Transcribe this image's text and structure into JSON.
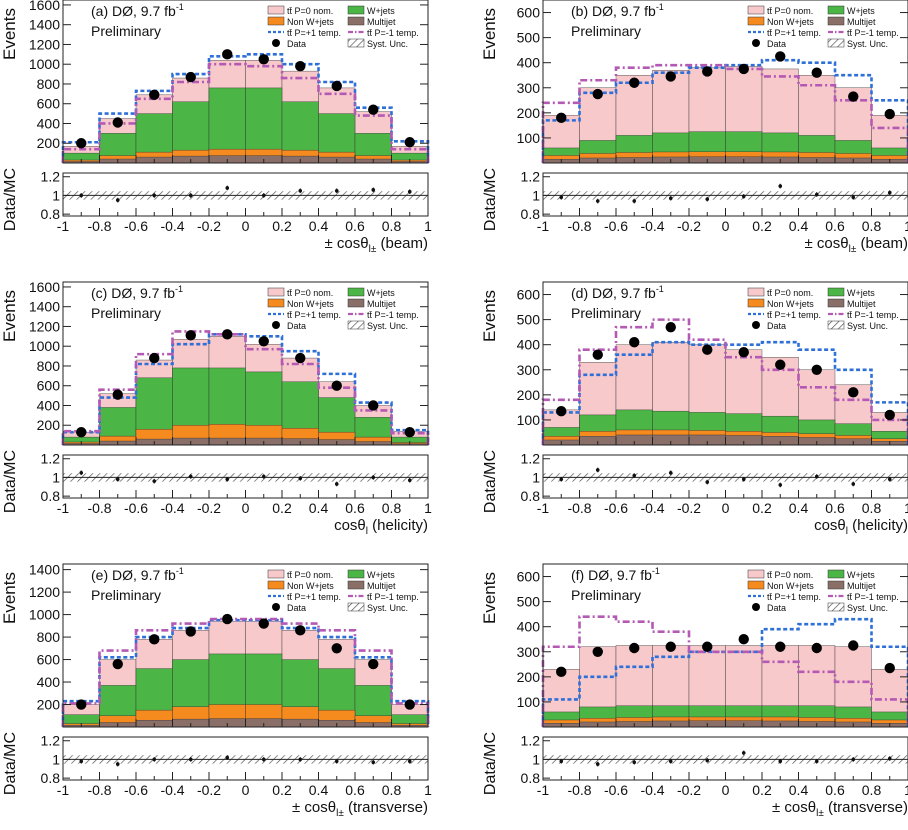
{
  "colors": {
    "ttbar_nom": "#f7c9cb",
    "wjets": "#4bb545",
    "nonw": "#f58a1f",
    "multijet": "#8a6f69",
    "p_plus": "#2f6fd8",
    "p_minus": "#b45ab4",
    "data": "#000000",
    "syst": "#555555"
  },
  "legend": {
    "ttbar_nom": "tt̄ P=0 nom.",
    "wjets": "W+jets",
    "nonw": "Non W+jets",
    "multijet": "Multijet",
    "p_plus": "tt̄ P=+1 temp.",
    "p_minus": "tt̄ P=-1 temp.",
    "data": "Data",
    "syst": "Syst. Unc."
  },
  "common": {
    "experiment": "DØ, 9.7 fb",
    "lumi_sup": "-1",
    "preliminary": "Preliminary",
    "ylabel_main": "Events",
    "ylabel_ratio": "Data/MC",
    "ratio_ticks": [
      "0.8",
      "1",
      "1.2"
    ]
  },
  "chart_data": [
    {
      "type": "bar",
      "tag": "(a)",
      "xlabel": "± cosθ",
      "xlabel_sub": "l±",
      "xlabel_tail": "(beam)",
      "xlim": [
        -1,
        1
      ],
      "ylim": [
        0,
        1650
      ],
      "yticks": [
        200,
        400,
        600,
        800,
        1000,
        1200,
        1400,
        1600
      ],
      "bin_centers": [
        -0.9,
        -0.7,
        -0.5,
        -0.3,
        -0.1,
        0.1,
        0.3,
        0.5,
        0.7,
        0.9
      ],
      "multijet": [
        15,
        40,
        60,
        70,
        75,
        75,
        70,
        60,
        40,
        15
      ],
      "nonw": [
        30,
        75,
        110,
        130,
        140,
        140,
        130,
        110,
        75,
        30
      ],
      "wjets": [
        100,
        300,
        500,
        620,
        760,
        760,
        620,
        500,
        300,
        100
      ],
      "total_p0": [
        170,
        450,
        690,
        860,
        1040,
        1040,
        930,
        760,
        520,
        170
      ],
      "p_plus": [
        210,
        500,
        730,
        900,
        1080,
        1100,
        1000,
        820,
        560,
        220
      ],
      "p_minus": [
        140,
        400,
        650,
        820,
        1000,
        980,
        860,
        700,
        480,
        140
      ],
      "data": [
        200,
        410,
        690,
        870,
        1100,
        1050,
        980,
        780,
        540,
        210
      ],
      "ratio": [
        1.0,
        0.95,
        1.0,
        1.0,
        1.08,
        1.0,
        1.05,
        1.05,
        1.06,
        1.04
      ]
    },
    {
      "type": "bar",
      "tag": "(b)",
      "xlabel": "± cosθ",
      "xlabel_sub": "l±",
      "xlabel_tail": "(beam)",
      "xlim": [
        -1,
        1
      ],
      "ylim": [
        0,
        650
      ],
      "yticks": [
        100,
        200,
        300,
        400,
        500,
        600
      ],
      "bin_centers": [
        -0.9,
        -0.7,
        -0.5,
        -0.3,
        -0.1,
        0.1,
        0.3,
        0.5,
        0.7,
        0.9
      ],
      "multijet": [
        15,
        20,
        22,
        24,
        25,
        25,
        24,
        22,
        20,
        15
      ],
      "nonw": [
        30,
        38,
        42,
        44,
        45,
        45,
        44,
        42,
        38,
        30
      ],
      "wjets": [
        60,
        90,
        110,
        120,
        125,
        125,
        120,
        110,
        90,
        60
      ],
      "total_p0": [
        190,
        300,
        350,
        370,
        380,
        385,
        375,
        350,
        300,
        190
      ],
      "p_plus": [
        170,
        280,
        320,
        360,
        380,
        390,
        410,
        400,
        350,
        250
      ],
      "p_minus": [
        240,
        330,
        380,
        390,
        390,
        375,
        345,
        310,
        250,
        140
      ],
      "data": [
        180,
        275,
        320,
        345,
        365,
        375,
        425,
        360,
        265,
        195
      ],
      "ratio": [
        0.98,
        0.94,
        0.94,
        0.97,
        0.96,
        0.99,
        1.1,
        1.01,
        0.98,
        1.03
      ]
    },
    {
      "type": "bar",
      "tag": "(c)",
      "xlabel": "cosθ",
      "xlabel_sub": "l",
      "xlabel_tail": "(helicity)",
      "xlim": [
        -1,
        1
      ],
      "ylim": [
        0,
        1650
      ],
      "yticks": [
        200,
        400,
        600,
        800,
        1000,
        1200,
        1400,
        1600
      ],
      "bin_centers": [
        -0.9,
        -0.7,
        -0.5,
        -0.3,
        -0.1,
        0.1,
        0.3,
        0.5,
        0.7,
        0.9
      ],
      "multijet": [
        15,
        40,
        60,
        70,
        70,
        70,
        65,
        55,
        35,
        12
      ],
      "nonw": [
        30,
        90,
        160,
        200,
        210,
        200,
        170,
        130,
        80,
        25
      ],
      "wjets": [
        80,
        380,
        680,
        780,
        780,
        740,
        640,
        480,
        280,
        80
      ],
      "total_p0": [
        130,
        520,
        860,
        1070,
        1100,
        1020,
        880,
        640,
        400,
        140
      ],
      "p_plus": [
        130,
        480,
        820,
        1020,
        1120,
        1100,
        950,
        720,
        430,
        150
      ],
      "p_minus": [
        140,
        560,
        920,
        1150,
        1120,
        970,
        820,
        580,
        350,
        120
      ],
      "data": [
        130,
        510,
        880,
        1110,
        1120,
        1050,
        880,
        600,
        400,
        130
      ],
      "ratio": [
        1.05,
        0.98,
        0.96,
        1.01,
        0.98,
        1.01,
        0.99,
        0.93,
        1.0,
        0.97
      ]
    },
    {
      "type": "bar",
      "tag": "(d)",
      "xlabel": "cosθ",
      "xlabel_sub": "l",
      "xlabel_tail": "(helicity)",
      "xlim": [
        -1,
        1
      ],
      "ylim": [
        0,
        650
      ],
      "yticks": [
        100,
        200,
        300,
        400,
        500,
        600
      ],
      "bin_centers": [
        -0.9,
        -0.7,
        -0.5,
        -0.3,
        -0.1,
        0.1,
        0.3,
        0.5,
        0.7,
        0.9
      ],
      "multijet": [
        20,
        35,
        40,
        40,
        40,
        38,
        35,
        30,
        25,
        15
      ],
      "nonw": [
        35,
        55,
        60,
        60,
        58,
        55,
        50,
        45,
        38,
        25
      ],
      "wjets": [
        70,
        120,
        140,
        135,
        130,
        125,
        115,
        100,
        85,
        55
      ],
      "total_p0": [
        140,
        330,
        400,
        410,
        400,
        380,
        350,
        300,
        240,
        130
      ],
      "p_plus": [
        130,
        280,
        360,
        410,
        400,
        400,
        410,
        380,
        300,
        170
      ],
      "p_minus": [
        180,
        380,
        470,
        500,
        420,
        350,
        300,
        230,
        180,
        100
      ],
      "data": [
        135,
        360,
        410,
        470,
        380,
        370,
        320,
        300,
        210,
        120
      ],
      "ratio": [
        0.98,
        1.08,
        1.02,
        1.05,
        0.95,
        0.98,
        0.92,
        1.01,
        0.93,
        0.98
      ]
    },
    {
      "type": "bar",
      "tag": "(e)",
      "xlabel": "± cosθ",
      "xlabel_sub": "l±",
      "xlabel_tail": "(transverse)",
      "xlim": [
        -1,
        1
      ],
      "ylim": [
        0,
        1450
      ],
      "yticks": [
        200,
        400,
        600,
        800,
        1000,
        1200,
        1400
      ],
      "bin_centers": [
        -0.9,
        -0.7,
        -0.5,
        -0.3,
        -0.1,
        0.1,
        0.3,
        0.5,
        0.7,
        0.9
      ],
      "multijet": [
        15,
        40,
        60,
        70,
        75,
        75,
        70,
        60,
        40,
        15
      ],
      "nonw": [
        30,
        100,
        150,
        180,
        200,
        200,
        180,
        150,
        100,
        30
      ],
      "wjets": [
        110,
        370,
        520,
        600,
        650,
        650,
        600,
        520,
        370,
        110
      ],
      "total_p0": [
        200,
        600,
        780,
        860,
        940,
        940,
        860,
        780,
        600,
        200
      ],
      "p_plus": [
        230,
        620,
        800,
        880,
        950,
        950,
        880,
        800,
        620,
        230
      ],
      "p_minus": [
        210,
        680,
        860,
        920,
        960,
        960,
        920,
        860,
        680,
        210
      ],
      "data": [
        200,
        560,
        780,
        850,
        960,
        920,
        860,
        700,
        560,
        200
      ],
      "ratio": [
        0.98,
        0.95,
        1.0,
        1.0,
        1.02,
        1.0,
        1.0,
        0.98,
        0.97,
        0.98
      ]
    },
    {
      "type": "bar",
      "tag": "(f)",
      "xlabel": "± cosθ",
      "xlabel_sub": "l±",
      "xlabel_tail": "(transverse)",
      "xlim": [
        -1,
        1
      ],
      "ylim": [
        0,
        650
      ],
      "yticks": [
        100,
        200,
        300,
        400,
        500,
        600
      ],
      "bin_centers": [
        -0.9,
        -0.7,
        -0.5,
        -0.3,
        -0.1,
        0.1,
        0.3,
        0.5,
        0.7,
        0.9
      ],
      "multijet": [
        15,
        20,
        22,
        24,
        25,
        25,
        24,
        22,
        20,
        15
      ],
      "nonw": [
        28,
        35,
        38,
        40,
        40,
        40,
        40,
        38,
        35,
        28
      ],
      "wjets": [
        60,
        80,
        85,
        85,
        85,
        85,
        85,
        85,
        80,
        60
      ],
      "total_p0": [
        230,
        320,
        325,
        325,
        325,
        325,
        325,
        325,
        320,
        230
      ],
      "p_plus": [
        110,
        200,
        240,
        280,
        300,
        300,
        390,
        410,
        430,
        320
      ],
      "p_minus": [
        320,
        440,
        420,
        380,
        300,
        300,
        260,
        220,
        180,
        110
      ],
      "data": [
        220,
        300,
        315,
        320,
        320,
        350,
        320,
        315,
        325,
        235
      ],
      "ratio": [
        0.98,
        0.95,
        0.97,
        0.98,
        0.99,
        1.07,
        0.98,
        0.98,
        1.0,
        1.01
      ]
    }
  ]
}
